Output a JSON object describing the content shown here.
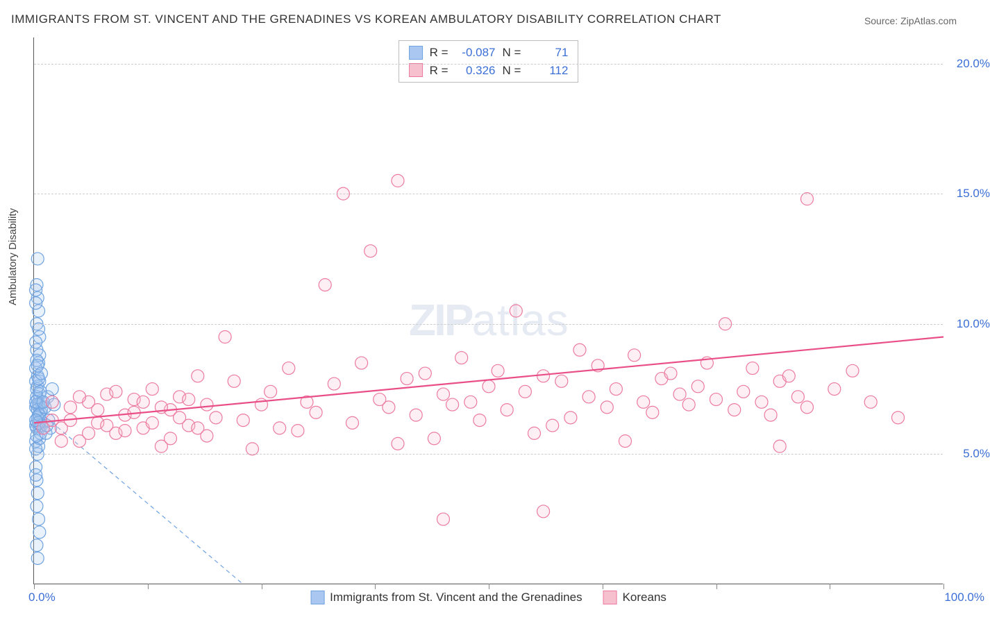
{
  "title": "IMMIGRANTS FROM ST. VINCENT AND THE GRENADINES VS KOREAN AMBULATORY DISABILITY CORRELATION CHART",
  "source": "Source: ZipAtlas.com",
  "ylabel": "Ambulatory Disability",
  "watermark_zip": "ZIP",
  "watermark_atlas": "atlas",
  "chart": {
    "type": "scatter",
    "xlim": [
      0,
      100
    ],
    "ylim": [
      0,
      21
    ],
    "ytick_values": [
      5,
      10,
      15,
      20
    ],
    "ytick_labels": [
      "5.0%",
      "10.0%",
      "15.0%",
      "20.0%"
    ],
    "xtick_values": [
      0,
      12.5,
      25,
      37.5,
      50,
      62.5,
      75,
      87.5,
      100
    ],
    "xlabel_min": "0.0%",
    "xlabel_max": "100.0%",
    "background_color": "#ffffff",
    "grid_color": "#cccccc",
    "marker_radius": 9,
    "marker_stroke_width": 1.2,
    "fill_opacity": 0.25,
    "series": [
      {
        "name": "Immigrants from St. Vincent and the Grenadines",
        "color_fill": "#a9c7f0",
        "color_stroke": "#6fa3e0",
        "R": "-0.087",
        "N": "71",
        "trend": {
          "x1": 0,
          "y1": 6.8,
          "x2": 23,
          "y2": 0,
          "stroke": "#6fa3e0",
          "dash": "6,5",
          "width": 1.2
        },
        "points": [
          [
            0.2,
            6.8
          ],
          [
            0.3,
            6.2
          ],
          [
            0.4,
            7.1
          ],
          [
            0.5,
            6.5
          ],
          [
            0.3,
            7.5
          ],
          [
            0.6,
            6.0
          ],
          [
            0.4,
            8.0
          ],
          [
            0.2,
            5.5
          ],
          [
            0.5,
            8.5
          ],
          [
            0.3,
            9.0
          ],
          [
            0.7,
            6.3
          ],
          [
            0.2,
            7.8
          ],
          [
            0.4,
            5.0
          ],
          [
            0.6,
            9.5
          ],
          [
            0.3,
            10.0
          ],
          [
            0.8,
            6.7
          ],
          [
            0.2,
            4.5
          ],
          [
            0.5,
            10.5
          ],
          [
            0.4,
            11.0
          ],
          [
            0.3,
            6.0
          ],
          [
            0.6,
            7.3
          ],
          [
            0.2,
            8.3
          ],
          [
            0.7,
            5.8
          ],
          [
            0.3,
            11.5
          ],
          [
            0.5,
            6.9
          ],
          [
            0.4,
            12.5
          ],
          [
            0.2,
            6.1
          ],
          [
            0.8,
            7.0
          ],
          [
            0.3,
            4.0
          ],
          [
            0.6,
            8.8
          ],
          [
            0.4,
            6.4
          ],
          [
            0.2,
            9.3
          ],
          [
            0.5,
            5.3
          ],
          [
            0.3,
            7.2
          ],
          [
            0.7,
            6.6
          ],
          [
            0.2,
            10.8
          ],
          [
            0.4,
            7.6
          ],
          [
            0.6,
            5.6
          ],
          [
            0.3,
            8.6
          ],
          [
            0.5,
            6.2
          ],
          [
            0.2,
            11.3
          ],
          [
            0.4,
            3.5
          ],
          [
            0.8,
            6.1
          ],
          [
            0.3,
            6.9
          ],
          [
            0.6,
            7.8
          ],
          [
            0.2,
            5.2
          ],
          [
            0.5,
            9.8
          ],
          [
            0.4,
            6.7
          ],
          [
            0.3,
            3.0
          ],
          [
            0.7,
            7.4
          ],
          [
            0.2,
            7.0
          ],
          [
            0.6,
            6.5
          ],
          [
            0.4,
            8.4
          ],
          [
            0.3,
            5.7
          ],
          [
            0.5,
            7.9
          ],
          [
            0.2,
            6.3
          ],
          [
            0.8,
            8.1
          ],
          [
            0.4,
            1.0
          ],
          [
            0.3,
            1.5
          ],
          [
            0.5,
            2.5
          ],
          [
            0.2,
            4.2
          ],
          [
            0.6,
            2.0
          ],
          [
            1.2,
            6.8
          ],
          [
            1.5,
            7.2
          ],
          [
            1.8,
            6.0
          ],
          [
            2.0,
            7.5
          ],
          [
            1.3,
            5.8
          ],
          [
            1.6,
            6.3
          ],
          [
            2.2,
            6.9
          ],
          [
            1.0,
            7.0
          ],
          [
            1.4,
            6.1
          ]
        ]
      },
      {
        "name": "Koreans",
        "color_fill": "#f7c0ce",
        "color_stroke": "#ec7ba0",
        "R": "0.326",
        "N": "112",
        "trend": {
          "x1": 0,
          "y1": 6.2,
          "x2": 100,
          "y2": 9.5,
          "stroke": "#e94f86",
          "dash": "",
          "width": 2.2
        },
        "points": [
          [
            2,
            6.3
          ],
          [
            3,
            6.0
          ],
          [
            4,
            6.8
          ],
          [
            5,
            5.5
          ],
          [
            6,
            7.0
          ],
          [
            7,
            6.2
          ],
          [
            8,
            7.3
          ],
          [
            9,
            5.8
          ],
          [
            10,
            6.5
          ],
          [
            11,
            7.1
          ],
          [
            12,
            6.0
          ],
          [
            13,
            7.5
          ],
          [
            14,
            5.3
          ],
          [
            15,
            6.7
          ],
          [
            16,
            7.2
          ],
          [
            17,
            6.1
          ],
          [
            18,
            8.0
          ],
          [
            19,
            5.7
          ],
          [
            20,
            6.4
          ],
          [
            21,
            9.5
          ],
          [
            22,
            7.8
          ],
          [
            23,
            6.3
          ],
          [
            24,
            5.2
          ],
          [
            25,
            6.9
          ],
          [
            26,
            7.4
          ],
          [
            27,
            6.0
          ],
          [
            28,
            8.3
          ],
          [
            29,
            5.9
          ],
          [
            30,
            7.0
          ],
          [
            31,
            6.6
          ],
          [
            32,
            11.5
          ],
          [
            33,
            7.7
          ],
          [
            34,
            15.0
          ],
          [
            35,
            6.2
          ],
          [
            36,
            8.5
          ],
          [
            37,
            12.8
          ],
          [
            38,
            7.1
          ],
          [
            39,
            6.8
          ],
          [
            40,
            5.4
          ],
          [
            40,
            15.5
          ],
          [
            41,
            7.9
          ],
          [
            42,
            6.5
          ],
          [
            43,
            8.1
          ],
          [
            44,
            5.6
          ],
          [
            45,
            7.3
          ],
          [
            45,
            2.5
          ],
          [
            46,
            6.9
          ],
          [
            47,
            8.7
          ],
          [
            48,
            7.0
          ],
          [
            49,
            6.3
          ],
          [
            50,
            7.6
          ],
          [
            51,
            8.2
          ],
          [
            52,
            6.7
          ],
          [
            53,
            10.5
          ],
          [
            54,
            7.4
          ],
          [
            55,
            5.8
          ],
          [
            56,
            8.0
          ],
          [
            56,
            2.8
          ],
          [
            57,
            6.1
          ],
          [
            58,
            7.8
          ],
          [
            59,
            6.4
          ],
          [
            60,
            9.0
          ],
          [
            61,
            7.2
          ],
          [
            62,
            8.4
          ],
          [
            63,
            6.8
          ],
          [
            64,
            7.5
          ],
          [
            65,
            5.5
          ],
          [
            66,
            8.8
          ],
          [
            67,
            7.0
          ],
          [
            68,
            6.6
          ],
          [
            69,
            7.9
          ],
          [
            70,
            8.1
          ],
          [
            71,
            7.3
          ],
          [
            72,
            6.9
          ],
          [
            73,
            7.6
          ],
          [
            74,
            8.5
          ],
          [
            75,
            7.1
          ],
          [
            76,
            10.0
          ],
          [
            77,
            6.7
          ],
          [
            78,
            7.4
          ],
          [
            79,
            8.3
          ],
          [
            80,
            7.0
          ],
          [
            81,
            6.5
          ],
          [
            82,
            7.8
          ],
          [
            82,
            5.3
          ],
          [
            83,
            8.0
          ],
          [
            84,
            7.2
          ],
          [
            85,
            6.8
          ],
          [
            85,
            14.8
          ],
          [
            88,
            7.5
          ],
          [
            90,
            8.2
          ],
          [
            92,
            7.0
          ],
          [
            95,
            6.4
          ],
          [
            1,
            6.0
          ],
          [
            2,
            7.0
          ],
          [
            3,
            5.5
          ],
          [
            4,
            6.3
          ],
          [
            5,
            7.2
          ],
          [
            6,
            5.8
          ],
          [
            7,
            6.7
          ],
          [
            8,
            6.1
          ],
          [
            9,
            7.4
          ],
          [
            10,
            5.9
          ],
          [
            11,
            6.6
          ],
          [
            12,
            7.0
          ],
          [
            13,
            6.2
          ],
          [
            14,
            6.8
          ],
          [
            15,
            5.6
          ],
          [
            16,
            6.4
          ],
          [
            17,
            7.1
          ],
          [
            18,
            6.0
          ],
          [
            19,
            6.9
          ]
        ]
      }
    ]
  },
  "legend_bottom": [
    {
      "label": "Immigrants from St. Vincent and the Grenadines",
      "fill": "#a9c7f0",
      "stroke": "#6fa3e0"
    },
    {
      "label": "Koreans",
      "fill": "#f7c0ce",
      "stroke": "#ec7ba0"
    }
  ]
}
